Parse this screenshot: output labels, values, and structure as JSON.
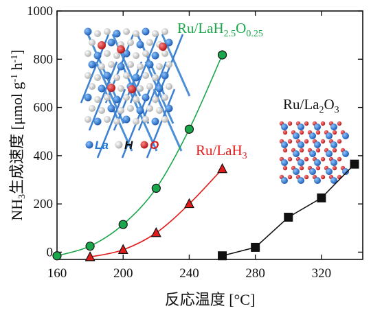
{
  "chart_data": {
    "type": "line",
    "xlabel": "反応温度 [°C]",
    "ylabel_parts": {
      "pre": "NH",
      "sub": "3",
      "mid": "生成速度 [μmol g",
      "sup1": "-1",
      "mid2": " h",
      "sup2": "-1",
      "post": "]"
    },
    "xlim": [
      160,
      340
    ],
    "ylim": [
      -30,
      1000
    ],
    "x_ticks": [
      160,
      200,
      240,
      280,
      320
    ],
    "y_ticks": [
      0,
      200,
      400,
      600,
      800,
      1000
    ],
    "series": [
      {
        "label_parts": [
          {
            "t": "Ru/LaH",
            "k": "n"
          },
          {
            "t": "2.5",
            "k": "sub"
          },
          {
            "t": "O",
            "k": "n"
          },
          {
            "t": "0.25",
            "k": "sub"
          }
        ],
        "color": "#1aa64a",
        "marker": "circle",
        "x": [
          160,
          180,
          200,
          220,
          240,
          260
        ],
        "y": [
          -15,
          25,
          115,
          265,
          510,
          818
        ]
      },
      {
        "label_parts": [
          {
            "t": "Ru/LaH",
            "k": "n"
          },
          {
            "t": "3",
            "k": "sub"
          }
        ],
        "color": "#e31a1a",
        "marker": "triangle",
        "x": [
          180,
          200,
          220,
          240,
          260
        ],
        "y": [
          -20,
          10,
          80,
          200,
          345
        ]
      },
      {
        "label_parts": [
          {
            "t": "Ru/La",
            "k": "n"
          },
          {
            "t": "2",
            "k": "sub"
          },
          {
            "t": "O",
            "k": "n"
          },
          {
            "t": "3",
            "k": "sub"
          }
        ],
        "color": "#111111",
        "marker": "square",
        "x": [
          260,
          280,
          300,
          320,
          340
        ],
        "y": [
          -15,
          20,
          145,
          225,
          365
        ]
      }
    ],
    "legend": [
      {
        "label": "La",
        "color": "#1e78d6"
      },
      {
        "label": "H",
        "color": "#e8e8e8"
      },
      {
        "label": "O",
        "color": "#e01b1b"
      }
    ],
    "colors": {
      "la_atom": "#1e78d6",
      "h_atom": "#e8e8e8",
      "o_atom": "#e01b1b",
      "ru_atom": "#c0392b"
    }
  }
}
